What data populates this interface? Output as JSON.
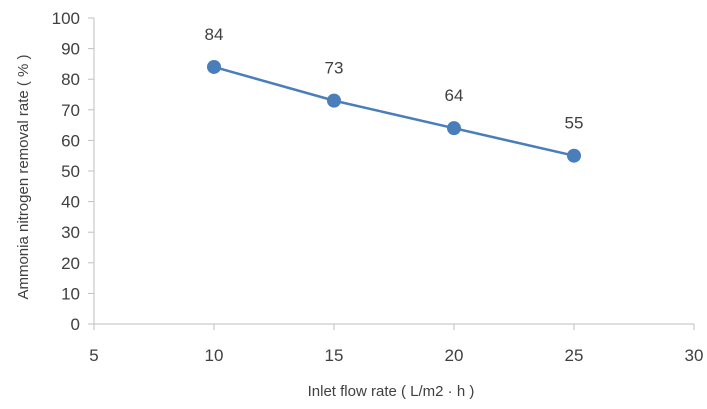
{
  "chart_data": {
    "type": "scatter",
    "title": "",
    "xlabel": "Inlet flow rate ( L/m2 · h )",
    "ylabel": "Ammonia nitrogen removal rate ( % )",
    "xlim": [
      5,
      30
    ],
    "ylim": [
      0,
      100
    ],
    "x_ticks": [
      5,
      10,
      15,
      20,
      25,
      30
    ],
    "y_ticks": [
      0,
      10,
      20,
      30,
      40,
      50,
      60,
      70,
      80,
      90,
      100
    ],
    "grid": false,
    "legend": "none",
    "series": [
      {
        "x": [
          10,
          15,
          20,
          25
        ],
        "y": [
          84,
          73,
          64,
          55
        ],
        "data_labels": [
          "84",
          "73",
          "64",
          "55"
        ],
        "color": "#4a7ebb",
        "marker": "circle",
        "line": true
      }
    ],
    "colors": {
      "axis": "#bfbfbf",
      "text": "#404040",
      "series": "#4a7ebb"
    }
  }
}
